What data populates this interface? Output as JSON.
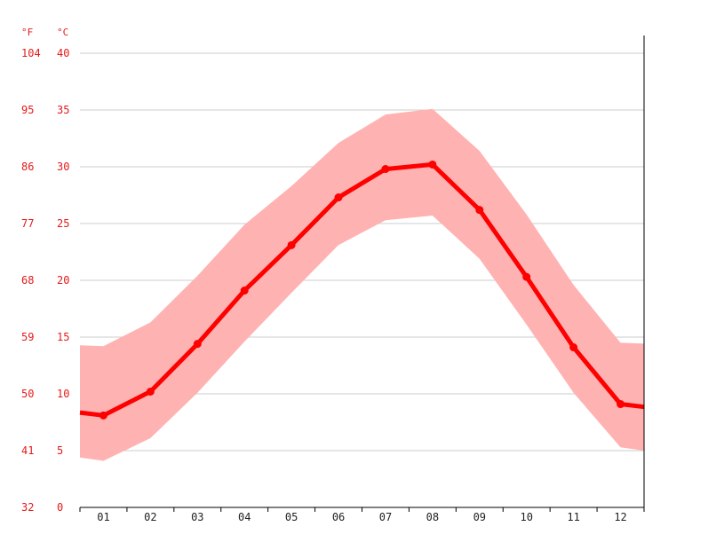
{
  "chart_data": {
    "type": "line",
    "unit_labels": {
      "fahrenheit": "°F",
      "celsius": "°C"
    },
    "y_ticks_celsius": [
      "0",
      "5",
      "10",
      "15",
      "20",
      "25",
      "30",
      "35",
      "40"
    ],
    "y_ticks_fahrenheit": [
      "32",
      "41",
      "50",
      "59",
      "68",
      "77",
      "86",
      "95",
      "104"
    ],
    "ylim": [
      0,
      40
    ],
    "categories": [
      "01",
      "02",
      "03",
      "04",
      "05",
      "06",
      "07",
      "08",
      "09",
      "10",
      "11",
      "12"
    ],
    "series": [
      {
        "values": [
          8.1,
          10.2,
          14.4,
          19.1,
          23.1,
          27.3,
          29.8,
          30.2,
          26.2,
          20.3,
          14.1,
          9.1
        ]
      }
    ],
    "range_band": {
      "min": [
        4.1,
        6.1,
        10.1,
        14.6,
        18.9,
        23.1,
        25.3,
        25.7,
        21.9,
        16.1,
        10.1,
        5.3
      ],
      "max": [
        14.2,
        16.3,
        20.4,
        24.9,
        28.3,
        32.1,
        34.6,
        35.1,
        31.4,
        25.8,
        19.6,
        14.5
      ]
    },
    "colors": {
      "line": "#ff0000",
      "band": "#ffb2b2",
      "grid": "#cccccc",
      "axis_text": "#e61919"
    },
    "grid": true
  }
}
